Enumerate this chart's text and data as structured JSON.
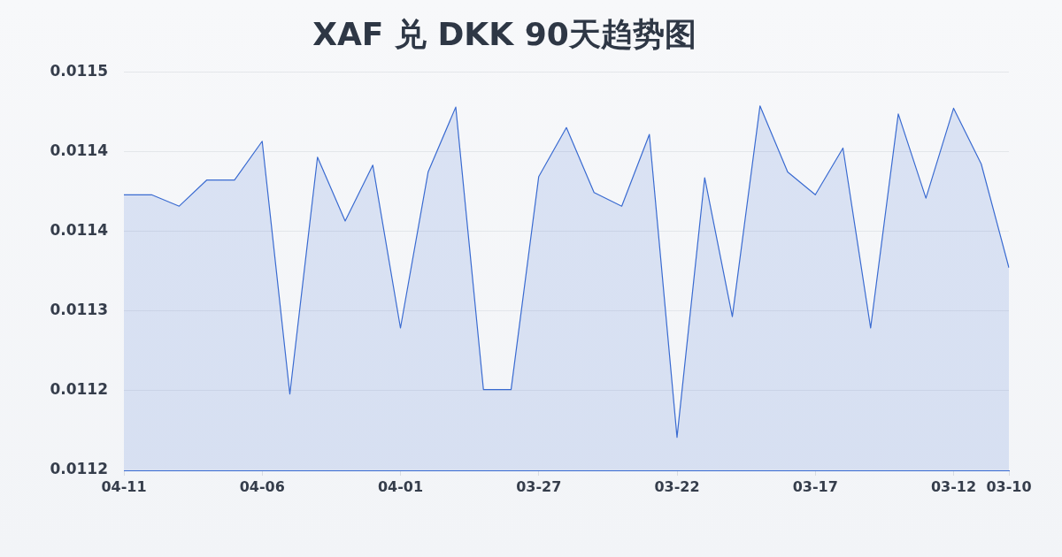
{
  "chart_data": {
    "type": "area",
    "title": "XAF 兑 DKK 90天趋势图",
    "categories": [
      "04-11",
      null,
      null,
      null,
      null,
      "04-06",
      null,
      null,
      null,
      null,
      "04-01",
      null,
      null,
      null,
      null,
      "03-27",
      null,
      null,
      null,
      null,
      "03-22",
      null,
      null,
      null,
      null,
      "03-17",
      null,
      null,
      null,
      null,
      "03-12",
      null,
      "03-10"
    ],
    "values": [
      0.011392,
      0.011392,
      0.011382,
      0.011405,
      0.011405,
      0.011439,
      0.011217,
      0.011425,
      0.011369,
      0.011418,
      0.011275,
      0.011412,
      0.011469,
      0.011221,
      0.011221,
      0.011408,
      0.011451,
      0.011394,
      0.011382,
      0.011445,
      0.011179,
      0.011407,
      0.011285,
      0.01147,
      0.011412,
      0.011392,
      0.011433,
      0.011275,
      0.011463,
      0.011389,
      0.011468,
      0.011419,
      0.011328
    ],
    "color": "#3a6bd1",
    "ylim": [
      0.01115,
      0.0115
    ],
    "yticks": [
      {
        "value": 0.01115,
        "label": "0.0112"
      },
      {
        "value": 0.01122,
        "label": "0.0112"
      },
      {
        "value": 0.01129,
        "label": "0.0113"
      },
      {
        "value": 0.01136,
        "label": "0.0114"
      },
      {
        "value": 0.01143,
        "label": "0.0114"
      },
      {
        "value": 0.0115,
        "label": "0.0115"
      }
    ],
    "grid": "y"
  }
}
